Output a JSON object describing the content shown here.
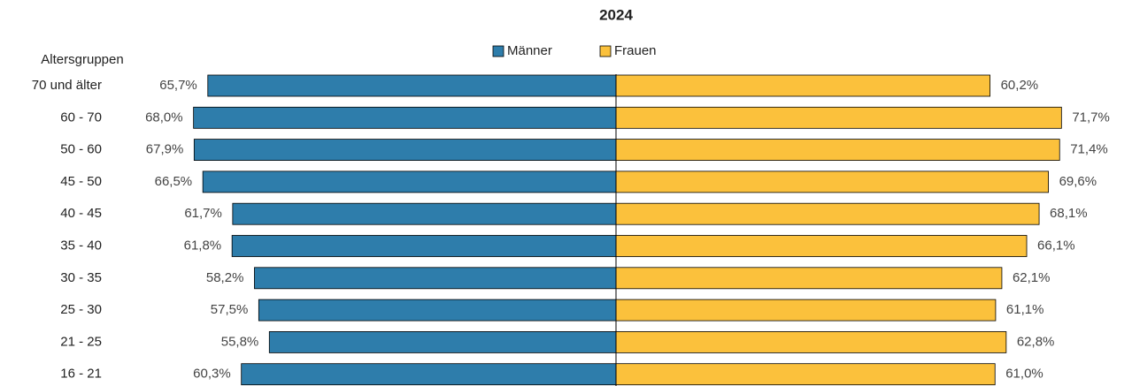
{
  "chart_data": {
    "type": "butterfly",
    "title": "2024",
    "y_label": "Altersgruppen",
    "categories": [
      "70 und älter",
      "60 - 70",
      "50 - 60",
      "45 - 50",
      "40 - 45",
      "35 - 40",
      "30 - 35",
      "25 - 30",
      "21 - 25",
      "16 - 21"
    ],
    "series": [
      {
        "name": "Männer",
        "color": "#2e7dab",
        "side": "left",
        "values": [
          65.7,
          68.0,
          67.9,
          66.5,
          61.7,
          61.8,
          58.2,
          57.5,
          55.8,
          60.3
        ],
        "value_labels": [
          "65,7%",
          "68,0%",
          "67,9%",
          "66,5%",
          "61,7%",
          "61,8%",
          "58,2%",
          "57,5%",
          "55,8%",
          "60,3%"
        ]
      },
      {
        "name": "Frauen",
        "color": "#fbc13c",
        "side": "right",
        "values": [
          60.2,
          71.7,
          71.4,
          69.6,
          68.1,
          66.1,
          62.1,
          61.1,
          62.8,
          61.0
        ],
        "value_labels": [
          "60,2%",
          "71,7%",
          "71,4%",
          "69,6%",
          "68,1%",
          "66,1%",
          "62,1%",
          "61,1%",
          "62,8%",
          "61,0%"
        ]
      }
    ]
  }
}
